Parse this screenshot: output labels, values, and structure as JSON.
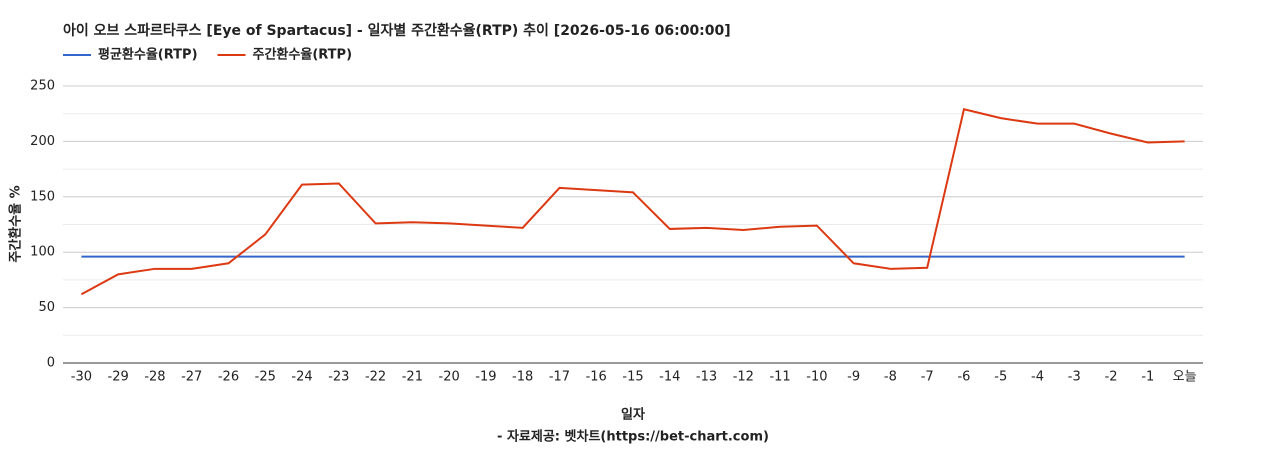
{
  "chart_data": {
    "type": "line",
    "title": "아이 오브 스파르타쿠스 [Eye of Spartacus] - 일자별 주간환수율(RTP) 추이 [2026-05-16 06:00:00]",
    "x_label": "일자",
    "y_label": "주간환수율 %",
    "source": "- 자료제공: 벳차트(https://bet-chart.com)",
    "categories": [
      "-30",
      "-29",
      "-28",
      "-27",
      "-26",
      "-25",
      "-24",
      "-23",
      "-22",
      "-21",
      "-20",
      "-19",
      "-18",
      "-17",
      "-16",
      "-15",
      "-14",
      "-13",
      "-12",
      "-11",
      "-10",
      "-9",
      "-8",
      "-7",
      "-6",
      "-5",
      "-4",
      "-3",
      "-2",
      "-1",
      "오늘"
    ],
    "series": [
      {
        "name": "평균환수율(RTP)",
        "color": "#3366cc",
        "values": [
          96,
          96,
          96,
          96,
          96,
          96,
          96,
          96,
          96,
          96,
          96,
          96,
          96,
          96,
          96,
          96,
          96,
          96,
          96,
          96,
          96,
          96,
          96,
          96,
          96,
          96,
          96,
          96,
          96,
          96,
          96
        ]
      },
      {
        "name": "주간환수율(RTP)",
        "color": "#dc3912",
        "values": [
          62,
          80,
          85,
          85,
          90,
          116,
          161,
          162,
          126,
          127,
          126,
          124,
          122,
          158,
          156,
          154,
          121,
          122,
          120,
          123,
          124,
          90,
          85,
          86,
          229,
          221,
          216,
          216,
          207,
          199,
          200
        ]
      }
    ],
    "ylim": [
      0,
      250
    ],
    "yticks": [
      0,
      50,
      100,
      150,
      200,
      250
    ],
    "minor_yticks": [
      25,
      75,
      125,
      175,
      225
    ],
    "grid": true,
    "legend": "top-left"
  }
}
